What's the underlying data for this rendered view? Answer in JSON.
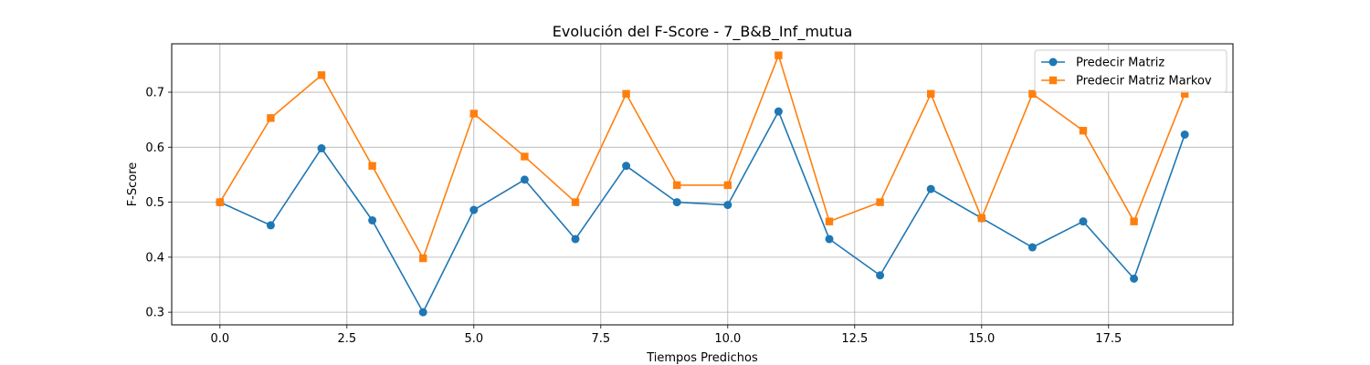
{
  "chart_data": {
    "type": "line",
    "title": "Evolución del F-Score - 7_B&B_Inf_mutua",
    "xlabel": "Tiempos Predichos",
    "ylabel": "F-Score",
    "xlim": [
      -0.95,
      19.95
    ],
    "ylim": [
      0.277,
      0.788
    ],
    "xticks": [
      0.0,
      2.5,
      5.0,
      7.5,
      10.0,
      12.5,
      15.0,
      17.5
    ],
    "xtick_labels": [
      "0.0",
      "2.5",
      "5.0",
      "7.5",
      "10.0",
      "12.5",
      "15.0",
      "17.5"
    ],
    "yticks": [
      0.3,
      0.4,
      0.5,
      0.6,
      0.7
    ],
    "ytick_labels": [
      "0.3",
      "0.4",
      "0.5",
      "0.6",
      "0.7"
    ],
    "grid": true,
    "legend_position": "top-right",
    "x": [
      0,
      1,
      2,
      3,
      4,
      5,
      6,
      7,
      8,
      9,
      10,
      11,
      12,
      13,
      14,
      15,
      16,
      17,
      18,
      19
    ],
    "series": [
      {
        "name": "Predecir Matriz",
        "color": "#1f77b4",
        "marker": "circle",
        "values": [
          0.5,
          0.458,
          0.598,
          0.467,
          0.3,
          0.486,
          0.541,
          0.433,
          0.566,
          0.5,
          0.495,
          0.665,
          0.433,
          0.367,
          0.524,
          0.471,
          0.418,
          0.465,
          0.361,
          0.623
        ]
      },
      {
        "name": "Predecir Matriz Markov",
        "color": "#ff7f0e",
        "marker": "square",
        "values": [
          0.5,
          0.653,
          0.731,
          0.566,
          0.398,
          0.661,
          0.583,
          0.5,
          0.697,
          0.531,
          0.531,
          0.767,
          0.465,
          0.5,
          0.697,
          0.471,
          0.697,
          0.63,
          0.465,
          0.697
        ]
      }
    ]
  }
}
